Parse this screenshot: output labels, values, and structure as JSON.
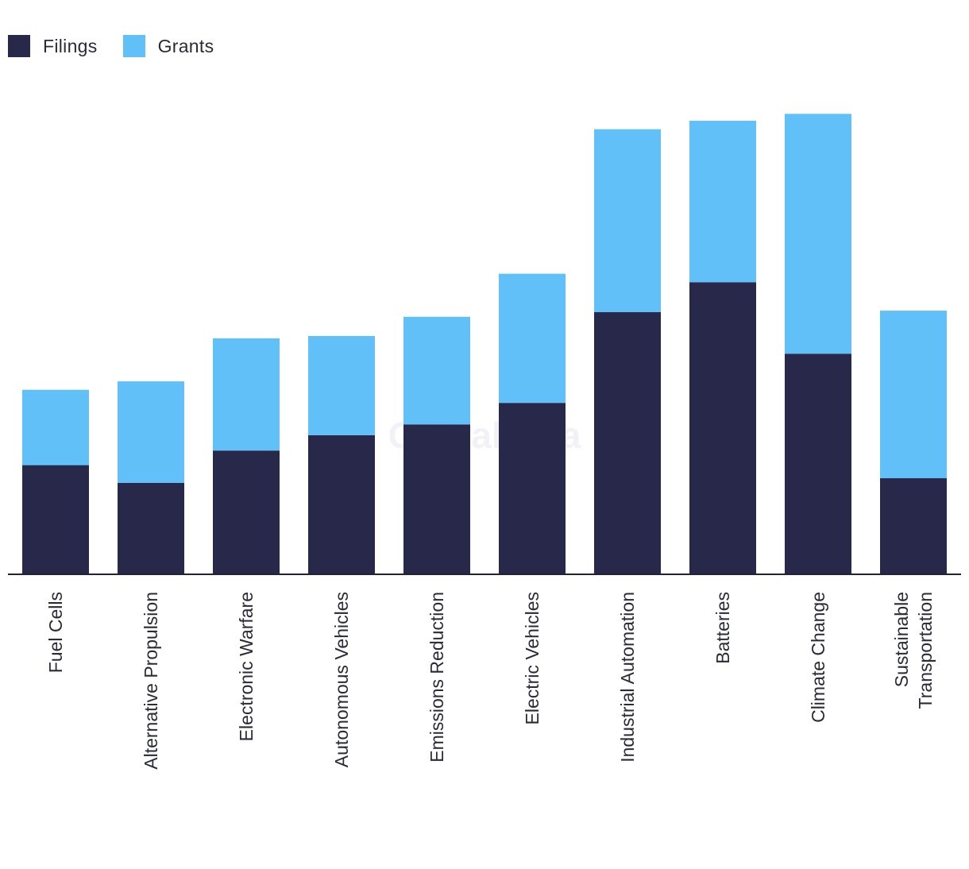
{
  "chart_data": {
    "type": "bar",
    "stacked": true,
    "categories": [
      "Fuel Cells",
      "Alternative Propulsion",
      "Electronic Warfare",
      "Autonomous Vehicles",
      "Emissions Reduction",
      "Electric Vehicles",
      "Industrial Automation",
      "Batteries",
      "Climate Change",
      "Sustainable Transportation"
    ],
    "category_lines": [
      [
        "Fuel Cells"
      ],
      [
        "Alternative Propulsion"
      ],
      [
        "Electronic Warfare"
      ],
      [
        "Autonomous Vehicles"
      ],
      [
        "Emissions Reduction"
      ],
      [
        "Electric Vehicles"
      ],
      [
        "Industrial Automation"
      ],
      [
        "Batteries"
      ],
      [
        "Climate Change"
      ],
      [
        "Sustainable",
        "Transportation"
      ]
    ],
    "series": [
      {
        "name": "Filings",
        "color": "#27284a",
        "values": [
          142,
          119,
          161,
          181,
          195,
          223,
          341,
          380,
          287,
          125
        ]
      },
      {
        "name": "Grants",
        "color": "#62c0f8",
        "values": [
          98,
          132,
          146,
          129,
          140,
          168,
          238,
          210,
          312,
          218
        ]
      }
    ],
    "ylim": [
      0,
      620
    ],
    "title": "",
    "xlabel": "",
    "ylabel": "",
    "watermark": "GlobalData",
    "legend_position": "top-left"
  },
  "legend": [
    {
      "label": "Filings",
      "color": "#27284a"
    },
    {
      "label": "Grants",
      "color": "#62c0f8"
    }
  ]
}
